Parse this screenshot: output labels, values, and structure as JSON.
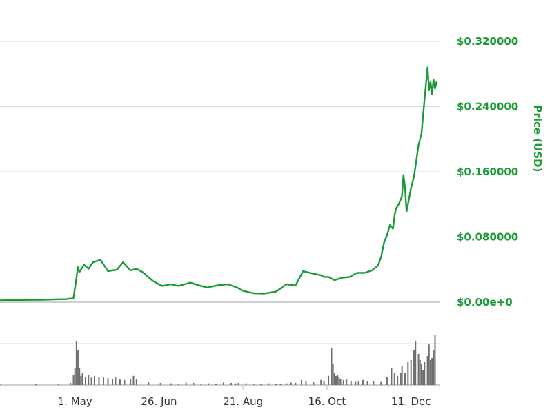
{
  "colors": {
    "price_line": "#1a9a37",
    "price_axis_text": "#1a9a37",
    "grid": "#dcdcdc",
    "baseline": "#bfbfbf",
    "volume_bars": "#6e6e6e",
    "x_tick_text": "#333333"
  },
  "chart_data": {
    "type": "line",
    "ylabel": "Price (USD)",
    "price_axis": {
      "ylim": [
        0,
        0.32
      ],
      "tick_labels": [
        "$0.320000",
        "$0.240000",
        "$0.160000",
        "$0.080000",
        "$0.00e+0"
      ],
      "tick_values": [
        0.32,
        0.24,
        0.16,
        0.08,
        0.0
      ],
      "grid": true,
      "position": "right"
    },
    "x_axis": {
      "tick_labels": [
        "1. May",
        "26. Jun",
        "21. Aug",
        "16. Oct",
        "11. Dec"
      ],
      "tick_days": [
        121,
        177,
        233,
        289,
        345
      ],
      "day_range": [
        71,
        364
      ]
    },
    "series": [
      {
        "name": "",
        "type": "line",
        "days": [
          71,
          80,
          90,
          100,
          108,
          115,
          120,
          123,
          124,
          127,
          130,
          133,
          138,
          143,
          149,
          153,
          156,
          158,
          162,
          166,
          173,
          179,
          185,
          190,
          198,
          203,
          209,
          217,
          223,
          229,
          233,
          240,
          247,
          255,
          262,
          268,
          273,
          280,
          285,
          287,
          290,
          294,
          299,
          304,
          309,
          314,
          319,
          323,
          325,
          327,
          329,
          331,
          333,
          334,
          335,
          337,
          339,
          340,
          341,
          342,
          345,
          347,
          350,
          352,
          354,
          356,
          357,
          358,
          359,
          360,
          361,
          362
        ],
        "price": [
          0.0022,
          0.0026,
          0.0028,
          0.003,
          0.0035,
          0.0036,
          0.005,
          0.043,
          0.037,
          0.046,
          0.041,
          0.049,
          0.052,
          0.038,
          0.04,
          0.049,
          0.043,
          0.039,
          0.041,
          0.037,
          0.026,
          0.02,
          0.022,
          0.02,
          0.024,
          0.021,
          0.018,
          0.021,
          0.022,
          0.018,
          0.014,
          0.011,
          0.0105,
          0.013,
          0.022,
          0.0205,
          0.038,
          0.035,
          0.033,
          0.031,
          0.031,
          0.027,
          0.03,
          0.031,
          0.036,
          0.036,
          0.039,
          0.045,
          0.055,
          0.073,
          0.082,
          0.095,
          0.09,
          0.106,
          0.115,
          0.121,
          0.13,
          0.156,
          0.141,
          0.111,
          0.14,
          0.154,
          0.193,
          0.207,
          0.249,
          0.288,
          0.26,
          0.27,
          0.255,
          0.273,
          0.262,
          0.27
        ]
      },
      {
        "name": "",
        "type": "volume",
        "days": [
          71,
          95,
          110,
          118,
          120,
          121,
          122,
          123,
          124,
          125,
          126,
          128,
          130,
          132,
          134,
          137,
          140,
          143,
          146,
          148,
          151,
          154,
          158,
          160,
          162,
          170,
          178,
          185,
          190,
          195,
          200,
          205,
          210,
          215,
          220,
          225,
          228,
          230,
          235,
          240,
          245,
          250,
          255,
          258,
          262,
          265,
          268,
          272,
          275,
          280,
          285,
          287,
          290,
          292,
          293,
          294,
          295,
          296,
          297,
          298,
          300,
          302,
          305,
          308,
          310,
          313,
          316,
          320,
          325,
          329,
          332,
          334,
          336,
          338,
          339,
          341,
          343,
          345,
          347,
          348,
          350,
          351,
          352,
          353,
          354,
          356,
          357,
          358,
          359,
          360,
          361
        ],
        "rel_height": [
          0.01,
          0.02,
          0.03,
          0.05,
          0.25,
          0.42,
          1.05,
          0.85,
          0.4,
          0.22,
          0.3,
          0.2,
          0.25,
          0.18,
          0.22,
          0.2,
          0.18,
          0.16,
          0.14,
          0.18,
          0.13,
          0.12,
          0.15,
          0.22,
          0.15,
          0.07,
          0.05,
          0.04,
          0.03,
          0.06,
          0.05,
          0.03,
          0.04,
          0.03,
          0.06,
          0.05,
          0.04,
          0.05,
          0.04,
          0.03,
          0.03,
          0.04,
          0.03,
          0.03,
          0.04,
          0.06,
          0.05,
          0.12,
          0.1,
          0.08,
          0.12,
          0.1,
          0.22,
          0.9,
          0.5,
          0.3,
          0.22,
          0.25,
          0.18,
          0.15,
          0.12,
          0.13,
          0.1,
          0.09,
          0.1,
          0.12,
          0.1,
          0.1,
          0.09,
          0.2,
          0.4,
          0.3,
          0.22,
          0.3,
          0.45,
          0.3,
          0.55,
          0.6,
          0.85,
          1.05,
          0.75,
          0.6,
          0.5,
          0.35,
          0.55,
          0.7,
          0.98,
          0.6,
          0.65,
          0.85,
          1.2
        ]
      }
    ]
  }
}
